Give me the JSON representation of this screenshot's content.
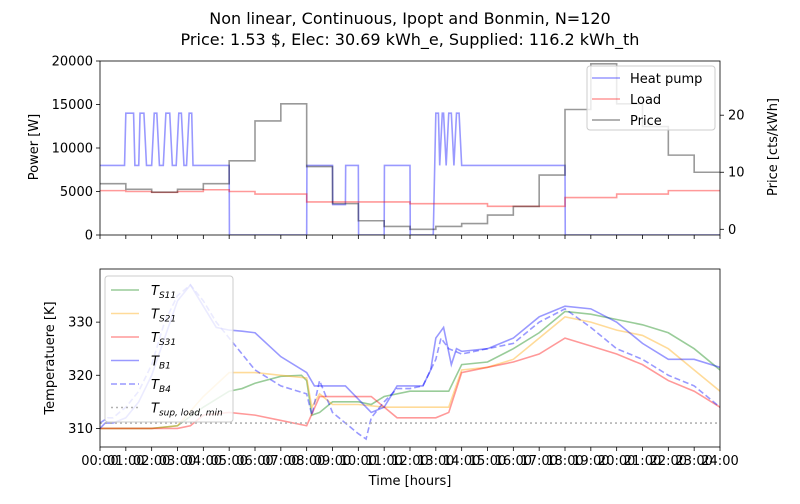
{
  "chart_data": {
    "title_line1": "Non linear, Continuous, Ipopt and Bonmin, N=120",
    "title_line2": "Price: 1.53 $, Elec: 30.69 kWh_e, Supplied: 116.2 kWh_th",
    "xlabel": "Time [hours]",
    "x_ticks": [
      "00:00",
      "01:00",
      "02:00",
      "03:00",
      "04:00",
      "05:00",
      "06:00",
      "07:00",
      "08:00",
      "09:00",
      "10:00",
      "11:00",
      "12:00",
      "13:00",
      "14:00",
      "15:00",
      "16:00",
      "17:00",
      "18:00",
      "19:00",
      "20:00",
      "21:00",
      "22:00",
      "23:00",
      "24:00"
    ],
    "top": {
      "type": "line",
      "ylabel": "Power [W]",
      "y2label": "Price [cts/kWh]",
      "ylim": [
        0,
        20000
      ],
      "y2lim": [
        -1,
        29.5
      ],
      "y_ticks": [
        0,
        5000,
        10000,
        15000,
        20000
      ],
      "y2_ticks": [
        0,
        10,
        20
      ],
      "legend_position": "top-right",
      "series": [
        {
          "name": "Heat pump",
          "axis": "left",
          "color": "#0000ff",
          "style": "solid",
          "x": [
            0,
            0.95,
            1.0,
            1.3,
            1.35,
            1.5,
            1.55,
            1.7,
            1.8,
            2.0,
            2.1,
            2.2,
            2.3,
            2.45,
            2.55,
            2.7,
            2.8,
            2.95,
            3.05,
            3.15,
            3.25,
            3.35,
            3.45,
            3.55,
            3.6,
            4.0,
            4.95,
            5.0,
            5.01,
            8.0,
            8.01,
            9.0,
            9.01,
            9.5,
            9.51,
            10.0,
            10.01,
            11.0,
            11.01,
            12.0,
            12.01,
            12.9,
            13.0,
            13.1,
            13.15,
            13.25,
            13.3,
            13.4,
            13.5,
            13.6,
            13.7,
            13.8,
            13.9,
            14.0,
            17.95,
            18.0,
            18.01,
            24.0
          ],
          "y": [
            8000,
            8000,
            14000,
            14000,
            8000,
            8000,
            14000,
            14000,
            8000,
            8000,
            14000,
            14000,
            8000,
            8000,
            14000,
            14000,
            8000,
            8000,
            14000,
            14000,
            8000,
            8000,
            14000,
            14000,
            8000,
            8000,
            8000,
            8000,
            0,
            0,
            8000,
            8000,
            3500,
            3500,
            8000,
            8000,
            0,
            0,
            8000,
            8000,
            0,
            0,
            14000,
            14000,
            8000,
            14000,
            14000,
            8000,
            14000,
            14000,
            8000,
            14000,
            14000,
            8000,
            8000,
            8000,
            0,
            0
          ]
        },
        {
          "name": "Load",
          "axis": "left",
          "color": "#ff0000",
          "style": "solid",
          "x": [
            0,
            1,
            1,
            2,
            2,
            3,
            3,
            4,
            4,
            5,
            5,
            6,
            6,
            8,
            8,
            12,
            12,
            15,
            15,
            18,
            18,
            20,
            20,
            22,
            22,
            24
          ],
          "y": [
            5100,
            5100,
            5000,
            5000,
            4900,
            4900,
            5000,
            5000,
            5200,
            5200,
            5000,
            5000,
            4700,
            4700,
            3800,
            3800,
            3600,
            3600,
            3300,
            3300,
            4300,
            4300,
            4700,
            4700,
            5100,
            5100
          ]
        },
        {
          "name": "Price",
          "axis": "right",
          "color": "#000000",
          "style": "solid",
          "x": [
            0,
            1,
            1,
            2,
            2,
            3,
            3,
            4,
            4,
            5,
            5,
            6,
            6,
            7,
            7,
            8,
            8,
            9,
            9,
            10,
            10,
            11,
            11,
            12,
            12,
            13,
            13,
            14,
            14,
            15,
            15,
            16,
            16,
            17,
            17,
            18,
            18,
            19,
            19,
            20,
            20,
            21,
            21,
            22,
            22,
            23,
            23,
            24
          ],
          "y": [
            8,
            8,
            7,
            7,
            6.5,
            6.5,
            7,
            7,
            8,
            8,
            12,
            12,
            19,
            19,
            22,
            22,
            11,
            11,
            4.5,
            4.5,
            1.5,
            1.5,
            0.5,
            0.5,
            0,
            0,
            0.5,
            0.5,
            1,
            1,
            2.5,
            2.5,
            4,
            4,
            9.5,
            9.5,
            21,
            21,
            29,
            29,
            22,
            22,
            18,
            18,
            13,
            13,
            10,
            10
          ]
        }
      ]
    },
    "bottom": {
      "type": "line",
      "ylabel": "Temperatuere [K]",
      "ylim": [
        306.5,
        340
      ],
      "y_ticks": [
        310,
        320,
        330
      ],
      "legend_position": "top-left",
      "series": [
        {
          "name": "T_S11",
          "label_main": "T",
          "label_sub": "S11",
          "color": "#008000",
          "style": "solid",
          "x": [
            0,
            0.5,
            1,
            2,
            3,
            4,
            5,
            5.5,
            6,
            7,
            7.8,
            8.0,
            8.2,
            8.5,
            9,
            10,
            10.5,
            11,
            12,
            12.5,
            13,
            13.5,
            14,
            15,
            16,
            17,
            18,
            19,
            20,
            21,
            22,
            23,
            24
          ],
          "y": [
            310,
            310,
            310,
            310,
            310.5,
            314,
            317,
            317.5,
            318.5,
            319.8,
            320,
            319,
            312.5,
            313,
            315,
            315,
            314.5,
            316,
            317,
            317,
            317,
            317,
            322,
            322.5,
            325,
            328,
            332,
            331.5,
            330.5,
            329.5,
            328,
            325,
            321
          ]
        },
        {
          "name": "T_S21",
          "label_main": "T",
          "label_sub": "S21",
          "color": "#ffa500",
          "style": "solid",
          "x": [
            0,
            0.5,
            1,
            2,
            3,
            4,
            5,
            6,
            7,
            8,
            8.2,
            8.5,
            9,
            10,
            11,
            12,
            13,
            13.5,
            14,
            15,
            16,
            17,
            18,
            19,
            20,
            21,
            22,
            23,
            24
          ],
          "y": [
            310,
            310,
            310,
            310,
            310.5,
            316,
            320.5,
            320.5,
            320,
            319.5,
            314,
            316.5,
            314.5,
            314.5,
            314,
            314,
            314,
            314,
            321,
            321.5,
            323,
            327,
            331,
            330,
            328.5,
            327.5,
            325,
            321,
            317
          ]
        },
        {
          "name": "T_S31",
          "label_main": "T",
          "label_sub": "S31",
          "color": "#ff0000",
          "style": "solid",
          "x": [
            0,
            1,
            2,
            3,
            3.5,
            4,
            5,
            6,
            7,
            8,
            8.5,
            9,
            10,
            10.5,
            11,
            11.5,
            12,
            13,
            13.5,
            14,
            15,
            16,
            17,
            18,
            19,
            20,
            21,
            22,
            23,
            24
          ],
          "y": [
            310,
            310,
            310,
            310,
            310.5,
            312.5,
            313,
            312.5,
            311.5,
            310.5,
            316,
            316,
            316,
            316,
            314,
            312,
            312,
            312,
            313,
            320.5,
            321.5,
            322.5,
            324,
            327,
            325.5,
            324,
            322,
            319,
            317,
            314
          ]
        },
        {
          "name": "T_B1",
          "label_main": "T",
          "label_sub": "B1",
          "color": "#0000ff",
          "style": "solid",
          "x": [
            0,
            0.2,
            0.5,
            1,
            1.5,
            2,
            2.5,
            3,
            3.5,
            4,
            4.5,
            5,
            5.5,
            6,
            7,
            8,
            8.3,
            9,
            9.5,
            10,
            10.5,
            11,
            11.5,
            12,
            12.5,
            12.8,
            13,
            13.3,
            13.6,
            13.8,
            14,
            15,
            16,
            17,
            17.5,
            18,
            19,
            20,
            21,
            22,
            23,
            24
          ],
          "y": [
            310,
            311,
            311,
            312,
            315,
            320,
            327,
            334,
            337,
            333,
            329,
            328.5,
            328.3,
            328,
            323.5,
            320.5,
            318,
            318,
            318,
            315.5,
            313,
            314,
            318,
            318,
            318,
            321,
            327,
            329,
            322,
            325,
            324.5,
            325,
            327,
            331,
            332,
            333,
            332.5,
            330,
            326,
            323,
            323,
            321.5
          ]
        },
        {
          "name": "T_B4",
          "label_main": "T",
          "label_sub": "B4",
          "color": "#0000ff",
          "style": "dashed",
          "x": [
            0,
            0.3,
            0.5,
            1,
            1.5,
            2,
            2.5,
            3,
            3.5,
            4,
            4.5,
            5,
            5.5,
            6,
            7,
            8,
            8.2,
            8.5,
            9,
            9.5,
            10,
            10.3,
            10.5,
            11,
            11.5,
            12,
            12.5,
            13,
            13.2,
            13.5,
            14,
            15,
            16,
            17,
            18,
            19,
            20,
            21,
            22,
            23,
            24
          ],
          "y": [
            311,
            312,
            312,
            314,
            317,
            322,
            330,
            335,
            337,
            334,
            330,
            327,
            324,
            321,
            318,
            316.5,
            312.5,
            319,
            313,
            311,
            309,
            308,
            312,
            315,
            317.5,
            317.5,
            318,
            323,
            327,
            325,
            324,
            325,
            326,
            330,
            332.5,
            329,
            325,
            323,
            320,
            318,
            314
          ]
        },
        {
          "name": "T_sup,load,min",
          "label_main": "T",
          "label_sub": "sup, load, min",
          "color": "#aaaaaa",
          "style": "dotted",
          "x": [
            0,
            24
          ],
          "y": [
            311,
            311
          ]
        }
      ]
    }
  }
}
